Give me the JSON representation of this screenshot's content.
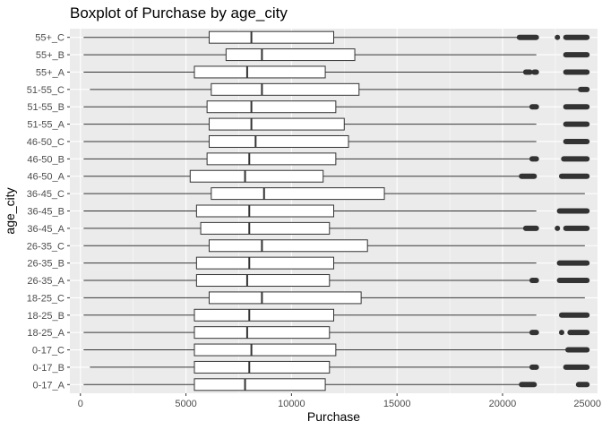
{
  "chart_data": {
    "type": "boxplot",
    "orientation": "horizontal",
    "title": "Boxplot of Purchase by age_city",
    "xlabel": "Purchase",
    "ylabel": "age_city",
    "xlim": [
      -500,
      24500
    ],
    "xticks": [
      0,
      5000,
      10000,
      15000,
      20000,
      25000
    ],
    "grid": true,
    "legend": "none",
    "colors": {
      "panel": "#ebebeb",
      "grid_major": "#ffffff",
      "box_fill": "#ffffff",
      "box_line": "#333333",
      "outlier": "#333333"
    },
    "categories": [
      "0-17_A",
      "0-17_B",
      "0-17_C",
      "18-25_A",
      "18-25_B",
      "18-25_C",
      "26-35_A",
      "26-35_B",
      "26-35_C",
      "36-45_A",
      "36-45_B",
      "36-45_C",
      "46-50_A",
      "46-50_B",
      "46-50_C",
      "51-55_A",
      "51-55_B",
      "51-55_C",
      "55+_A",
      "55+_B",
      "55+_C"
    ],
    "boxes": [
      {
        "name": "0-17_A",
        "min": 150,
        "q1": 5400,
        "median": 7800,
        "q3": 11600,
        "max": 20800,
        "outliers": [
          [
            20900,
            21500
          ],
          [
            23600,
            24000
          ]
        ]
      },
      {
        "name": "0-17_B",
        "min": 450,
        "q1": 5400,
        "median": 8000,
        "q3": 11800,
        "max": 21300,
        "outliers": [
          [
            21400,
            21600
          ],
          [
            23000,
            24000
          ]
        ]
      },
      {
        "name": "0-17_C",
        "min": 150,
        "q1": 5400,
        "median": 8100,
        "q3": 12100,
        "max": 23000,
        "outliers": [
          [
            23100,
            24000
          ]
        ]
      },
      {
        "name": "18-25_A",
        "min": 150,
        "q1": 5400,
        "median": 7900,
        "q3": 11800,
        "max": 21300,
        "outliers": [
          [
            21400,
            21600
          ],
          [
            22800,
            22800
          ],
          [
            23200,
            24000
          ]
        ]
      },
      {
        "name": "18-25_B",
        "min": 150,
        "q1": 5400,
        "median": 8000,
        "q3": 12000,
        "max": 21600,
        "outliers": [
          [
            22800,
            24000
          ]
        ]
      },
      {
        "name": "18-25_C",
        "min": 150,
        "q1": 6100,
        "median": 8600,
        "q3": 13300,
        "max": 23900,
        "outliers": []
      },
      {
        "name": "26-35_A",
        "min": 150,
        "q1": 5500,
        "median": 7900,
        "q3": 11800,
        "max": 21300,
        "outliers": [
          [
            21400,
            21600
          ],
          [
            22700,
            24000
          ]
        ]
      },
      {
        "name": "26-35_B",
        "min": 150,
        "q1": 5500,
        "median": 8000,
        "q3": 12000,
        "max": 21600,
        "outliers": [
          [
            22700,
            24000
          ]
        ]
      },
      {
        "name": "26-35_C",
        "min": 150,
        "q1": 6100,
        "median": 8600,
        "q3": 13600,
        "max": 23900,
        "outliers": []
      },
      {
        "name": "36-45_A",
        "min": 150,
        "q1": 5700,
        "median": 8000,
        "q3": 11800,
        "max": 21000,
        "outliers": [
          [
            21100,
            21600
          ],
          [
            22600,
            22600
          ],
          [
            23000,
            24000
          ]
        ]
      },
      {
        "name": "36-45_B",
        "min": 150,
        "q1": 5500,
        "median": 8000,
        "q3": 12000,
        "max": 21600,
        "outliers": [
          [
            22700,
            24000
          ]
        ]
      },
      {
        "name": "36-45_C",
        "min": 150,
        "q1": 6200,
        "median": 8700,
        "q3": 14400,
        "max": 23900,
        "outliers": []
      },
      {
        "name": "46-50_A",
        "min": 150,
        "q1": 5200,
        "median": 7800,
        "q3": 11500,
        "max": 20800,
        "outliers": [
          [
            20900,
            21500
          ],
          [
            22800,
            24000
          ]
        ]
      },
      {
        "name": "46-50_B",
        "min": 150,
        "q1": 6000,
        "median": 8000,
        "q3": 12100,
        "max": 21300,
        "outliers": [
          [
            21400,
            21600
          ],
          [
            22900,
            24000
          ]
        ]
      },
      {
        "name": "46-50_C",
        "min": 150,
        "q1": 6100,
        "median": 8300,
        "q3": 12700,
        "max": 21600,
        "outliers": [
          [
            23000,
            24000
          ]
        ]
      },
      {
        "name": "51-55_A",
        "min": 150,
        "q1": 6100,
        "median": 8100,
        "q3": 12500,
        "max": 21600,
        "outliers": [
          [
            23000,
            24000
          ]
        ]
      },
      {
        "name": "51-55_B",
        "min": 150,
        "q1": 6000,
        "median": 8100,
        "q3": 12100,
        "max": 21300,
        "outliers": [
          [
            21400,
            21600
          ],
          [
            23000,
            24000
          ]
        ]
      },
      {
        "name": "51-55_C",
        "min": 450,
        "q1": 6200,
        "median": 8600,
        "q3": 13200,
        "max": 23600,
        "outliers": [
          [
            23700,
            24000
          ]
        ]
      },
      {
        "name": "55+_A",
        "min": 150,
        "q1": 5400,
        "median": 7900,
        "q3": 11600,
        "max": 21000,
        "outliers": [
          [
            21100,
            21300
          ],
          [
            21500,
            21600
          ],
          [
            23000,
            24000
          ]
        ]
      },
      {
        "name": "55+_B",
        "min": 150,
        "q1": 6900,
        "median": 8600,
        "q3": 13000,
        "max": 21600,
        "outliers": [
          [
            23000,
            24000
          ]
        ]
      },
      {
        "name": "55+_C",
        "min": 150,
        "q1": 6100,
        "median": 8100,
        "q3": 12000,
        "max": 20700,
        "outliers": [
          [
            20800,
            21600
          ],
          [
            22600,
            22600
          ],
          [
            23000,
            24000
          ]
        ]
      }
    ]
  }
}
